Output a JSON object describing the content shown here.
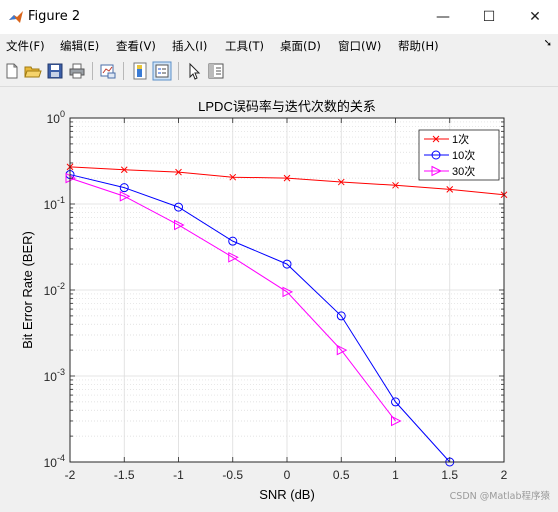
{
  "window": {
    "title": "Figure 2",
    "buttons": {
      "minimize": "—",
      "maximize": "☐",
      "close": "✕"
    }
  },
  "menu": {
    "items": [
      "文件(F)",
      "编辑(E)",
      "查看(V)",
      "插入(I)",
      "工具(T)",
      "桌面(D)",
      "窗口(W)",
      "帮助(H)"
    ],
    "overflow_icon": "arrow-icon"
  },
  "toolbar": {
    "icons": [
      "new-figure-icon",
      "open-file-icon",
      "save-icon",
      "print-icon",
      "link-plot-icon",
      "colorbar-icon",
      "legend-icon",
      "pointer-icon",
      "property-editor-icon"
    ]
  },
  "chart_data": {
    "type": "line",
    "title": "LPDC误码率与迭代次数的关系",
    "xlabel": "SNR (dB)",
    "ylabel": "Bit Error Rate (BER)",
    "xlim": [
      -2,
      2
    ],
    "ylim": [
      0.0001,
      1
    ],
    "yscale": "log",
    "grid": true,
    "minor_grid": true,
    "legend_position": "top-right",
    "x_ticks": [
      "-2",
      "-1.5",
      "-1",
      "-0.5",
      "0",
      "0.5",
      "1",
      "1.5",
      "2"
    ],
    "y_ticks": [
      {
        "base": "10",
        "exp": "0"
      },
      {
        "base": "10",
        "exp": "-1"
      },
      {
        "base": "10",
        "exp": "-2"
      },
      {
        "base": "10",
        "exp": "-3"
      },
      {
        "base": "10",
        "exp": "-4"
      }
    ],
    "series": [
      {
        "name": "1次",
        "color": "#ff0000",
        "marker": "x",
        "x": [
          -2,
          -1.5,
          -1,
          -0.5,
          0,
          0.5,
          1,
          1.5,
          2
        ],
        "y": [
          0.27,
          0.25,
          0.235,
          0.205,
          0.2,
          0.18,
          0.165,
          0.148,
          0.128
        ]
      },
      {
        "name": "10次",
        "color": "#0000ff",
        "marker": "o",
        "x": [
          -2,
          -1.5,
          -1,
          -0.5,
          0,
          0.5,
          1,
          1.5
        ],
        "y": [
          0.22,
          0.155,
          0.092,
          0.037,
          0.02,
          0.005,
          0.0005,
          0.0001
        ]
      },
      {
        "name": "30次",
        "color": "#ff00ff",
        "marker": "triangle-right",
        "x": [
          -2,
          -1.5,
          -1,
          -0.5,
          0,
          0.5,
          1
        ],
        "y": [
          0.2,
          0.123,
          0.057,
          0.024,
          0.0095,
          0.002,
          0.0003
        ]
      }
    ]
  },
  "watermark": "CSDN @Matlab程序猿"
}
